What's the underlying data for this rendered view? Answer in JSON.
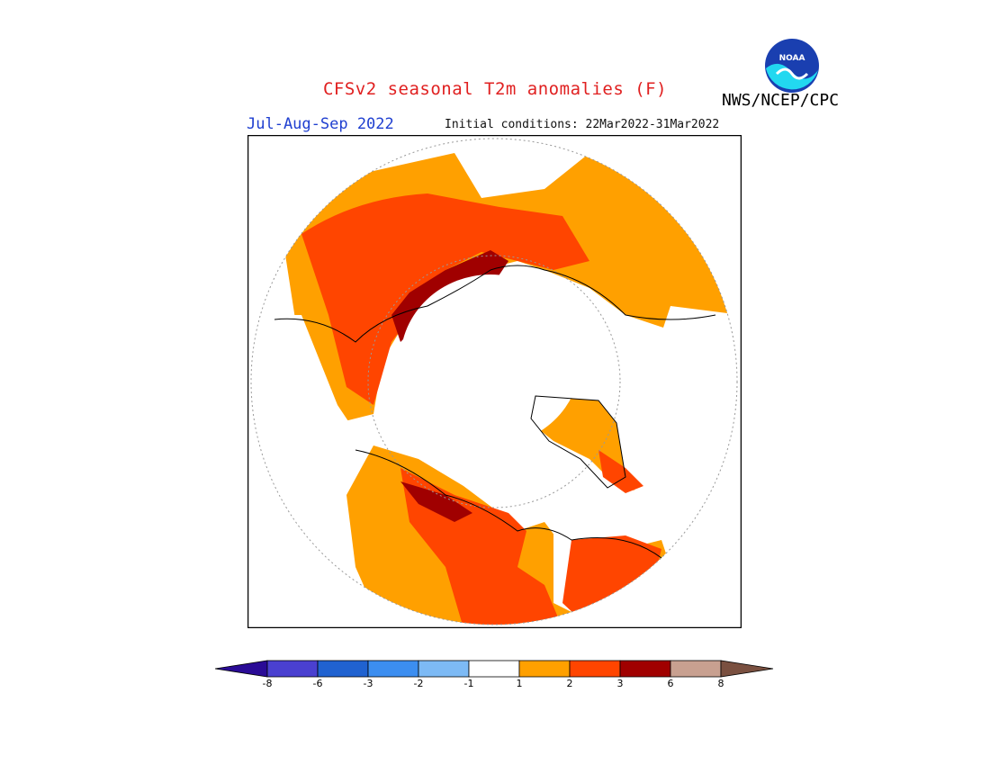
{
  "header": {
    "title": "CFSv2 seasonal T2m anomalies (F)",
    "agency": "NWS/NCEP/CPC",
    "season": "Jul-Aug-Sep 2022",
    "initial_conditions": "Initial conditions: 22Mar2022-31Mar2022",
    "logo_icon": "noaa-logo-icon"
  },
  "map": {
    "projection": "north-polar-stereographic",
    "variable": "2m temperature anomaly",
    "units": "F"
  },
  "colorbar": {
    "ticks": [
      "-8",
      "-6",
      "-3",
      "-2",
      "-1",
      "1",
      "2",
      "3",
      "6",
      "8"
    ],
    "colors": [
      "#2a0b96",
      "#4a40d0",
      "#2062d0",
      "#3c8ef0",
      "#7dbaf5",
      "#ffffff",
      "#ffa000",
      "#ff4500",
      "#a00000",
      "#c8a090",
      "#7a5040"
    ]
  }
}
